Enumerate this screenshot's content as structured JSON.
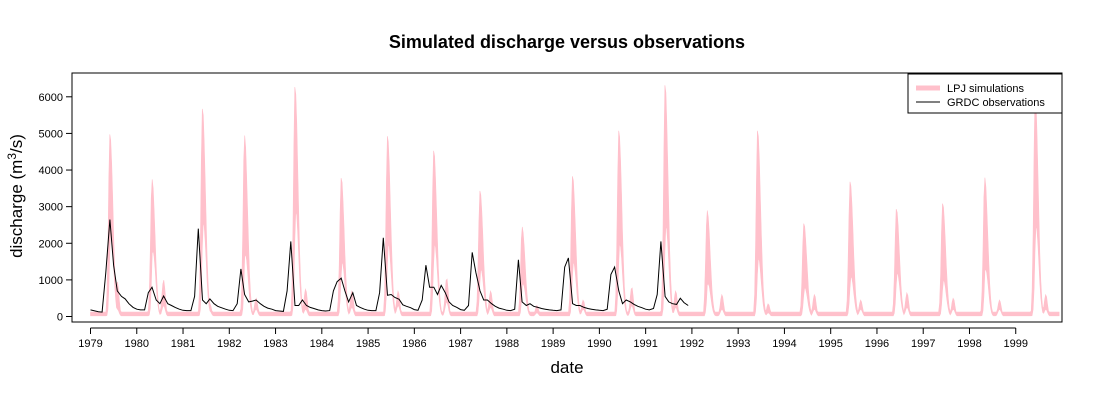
{
  "chart_data": {
    "type": "area",
    "title": "Simulated discharge versus observations",
    "xlabel": "date",
    "ylabel_main": "discharge (m",
    "ylabel_sup": "3",
    "ylabel_tail": "/s)",
    "xlim": [
      1978.6,
      2000.0
    ],
    "ylim": [
      -150,
      6650
    ],
    "xticks": [
      1979,
      1980,
      1981,
      1982,
      1983,
      1984,
      1985,
      1986,
      1987,
      1988,
      1989,
      1990,
      1991,
      1992,
      1993,
      1994,
      1995,
      1996,
      1997,
      1998,
      1999
    ],
    "xtick_labels": [
      "1979",
      "1980",
      "1981",
      "1982",
      "1983",
      "1984",
      "1985",
      "1986",
      "1987",
      "1988",
      "1989",
      "1990",
      "1991",
      "1992",
      "1993",
      "1994",
      "1995",
      "1996",
      "1997",
      "1998",
      "1999"
    ],
    "yticks": [
      0,
      1000,
      2000,
      3000,
      4000,
      5000,
      6000
    ],
    "ytick_labels": [
      "0",
      "1000",
      "2000",
      "3000",
      "4000",
      "5000",
      "6000"
    ],
    "legend": {
      "position": "top-right",
      "entries": [
        {
          "label": "LPJ simulations",
          "color": "#FFC0CB",
          "style": "band"
        },
        {
          "label": "GRDC observations",
          "color": "#000000",
          "style": "line"
        }
      ]
    },
    "series": [
      {
        "name": "LPJ simulations",
        "color": "#FFC0CB",
        "kind": "band",
        "peaks": [
          {
            "t": 1979.42,
            "high": 5000,
            "low": 2400
          },
          {
            "t": 1980.33,
            "high": 3750,
            "low": 1800
          },
          {
            "t": 1981.42,
            "high": 5700,
            "low": 2600
          },
          {
            "t": 1982.33,
            "high": 4950,
            "low": 1700
          },
          {
            "t": 1983.42,
            "high": 6300,
            "low": 2900
          },
          {
            "t": 1984.42,
            "high": 3800,
            "low": 1500
          },
          {
            "t": 1985.42,
            "high": 4950,
            "low": 2000
          },
          {
            "t": 1986.42,
            "high": 4550,
            "low": 2000
          },
          {
            "t": 1987.42,
            "high": 3450,
            "low": 1300
          },
          {
            "t": 1988.33,
            "high": 2450,
            "low": 900
          },
          {
            "t": 1989.42,
            "high": 3850,
            "low": 1500
          },
          {
            "t": 1990.42,
            "high": 5100,
            "low": 2000
          },
          {
            "t": 1991.42,
            "high": 6350,
            "low": 2500
          },
          {
            "t": 1992.33,
            "high": 2900,
            "low": 900
          },
          {
            "t": 1993.42,
            "high": 5100,
            "low": 1600
          },
          {
            "t": 1994.42,
            "high": 2550,
            "low": 800
          },
          {
            "t": 1995.42,
            "high": 3700,
            "low": 1100
          },
          {
            "t": 1996.42,
            "high": 2950,
            "low": 1200
          },
          {
            "t": 1997.42,
            "high": 3100,
            "low": 1000
          },
          {
            "t": 1998.33,
            "high": 3800,
            "low": 1300
          },
          {
            "t": 1999.42,
            "high": 6100,
            "low": 2500
          }
        ],
        "secondary": [
          {
            "t": 1979.58,
            "high": 950,
            "low": 200
          },
          {
            "t": 1980.58,
            "high": 1000,
            "low": 300
          },
          {
            "t": 1981.58,
            "high": 350,
            "low": 150
          },
          {
            "t": 1982.58,
            "high": 500,
            "low": 200
          },
          {
            "t": 1983.65,
            "high": 750,
            "low": 200
          },
          {
            "t": 1984.65,
            "high": 700,
            "low": 250
          },
          {
            "t": 1985.65,
            "high": 700,
            "low": 300
          },
          {
            "t": 1986.7,
            "high": 1050,
            "low": 400
          },
          {
            "t": 1987.65,
            "high": 700,
            "low": 250
          },
          {
            "t": 1988.65,
            "high": 300,
            "low": 100
          },
          {
            "t": 1989.65,
            "high": 450,
            "low": 200
          },
          {
            "t": 1990.7,
            "high": 800,
            "low": 300
          },
          {
            "t": 1991.65,
            "high": 700,
            "low": 250
          },
          {
            "t": 1992.65,
            "high": 600,
            "low": 200
          },
          {
            "t": 1993.65,
            "high": 350,
            "low": 100
          },
          {
            "t": 1994.65,
            "high": 600,
            "low": 200
          },
          {
            "t": 1995.65,
            "high": 450,
            "low": 200
          },
          {
            "t": 1996.65,
            "high": 650,
            "low": 250
          },
          {
            "t": 1997.65,
            "high": 500,
            "low": 200
          },
          {
            "t": 1998.65,
            "high": 450,
            "low": 200
          },
          {
            "t": 1999.65,
            "high": 600,
            "low": 200
          }
        ],
        "base_high": 120,
        "base_low": 20
      },
      {
        "name": "GRDC observations",
        "color": "#000000",
        "kind": "line",
        "x": [
          1979.0,
          1979.17,
          1979.25,
          1979.33,
          1979.42,
          1979.5,
          1979.58,
          1979.67,
          1979.75,
          1979.83,
          1979.92,
          1980.0,
          1980.08,
          1980.17,
          1980.25,
          1980.33,
          1980.42,
          1980.5,
          1980.58,
          1980.67,
          1980.75,
          1980.83,
          1980.92,
          1981.0,
          1981.08,
          1981.17,
          1981.25,
          1981.33,
          1981.42,
          1981.5,
          1981.58,
          1981.67,
          1981.75,
          1981.83,
          1981.92,
          1982.0,
          1982.08,
          1982.17,
          1982.25,
          1982.33,
          1982.42,
          1982.5,
          1982.58,
          1982.67,
          1982.75,
          1982.83,
          1982.92,
          1983.0,
          1983.08,
          1983.17,
          1983.25,
          1983.33,
          1983.42,
          1983.5,
          1983.58,
          1983.67,
          1983.75,
          1983.83,
          1983.92,
          1984.0,
          1984.08,
          1984.17,
          1984.25,
          1984.33,
          1984.42,
          1984.5,
          1984.58,
          1984.67,
          1984.75,
          1984.83,
          1984.92,
          1985.0,
          1985.08,
          1985.17,
          1985.25,
          1985.33,
          1985.42,
          1985.5,
          1985.58,
          1985.67,
          1985.75,
          1985.83,
          1985.92,
          1986.0,
          1986.08,
          1986.17,
          1986.25,
          1986.33,
          1986.42,
          1986.5,
          1986.58,
          1986.67,
          1986.75,
          1986.83,
          1986.92,
          1987.0,
          1987.08,
          1987.17,
          1987.25,
          1987.33,
          1987.42,
          1987.5,
          1987.58,
          1987.67,
          1987.75,
          1987.83,
          1987.92,
          1988.0,
          1988.08,
          1988.17,
          1988.25,
          1988.33,
          1988.42,
          1988.5,
          1988.58,
          1988.67,
          1988.75,
          1988.83,
          1988.92,
          1989.0,
          1989.08,
          1989.17,
          1989.25,
          1989.33,
          1989.42,
          1989.5,
          1989.58,
          1989.67,
          1989.75,
          1989.83,
          1989.92,
          1990.0,
          1990.08,
          1990.17,
          1990.25,
          1990.33,
          1990.42,
          1990.5,
          1990.58,
          1990.67,
          1990.75,
          1990.83,
          1990.92,
          1991.0,
          1991.08,
          1991.17,
          1991.25,
          1991.33,
          1991.42,
          1991.5,
          1991.58,
          1991.67,
          1991.75,
          1991.83,
          1991.92
        ],
        "y": [
          180,
          130,
          120,
          1200,
          2650,
          1400,
          700,
          550,
          480,
          350,
          250,
          200,
          180,
          180,
          650,
          800,
          450,
          350,
          560,
          350,
          300,
          250,
          200,
          170,
          160,
          160,
          550,
          2400,
          450,
          350,
          480,
          350,
          280,
          240,
          200,
          170,
          160,
          350,
          1300,
          600,
          400,
          420,
          450,
          350,
          280,
          230,
          200,
          160,
          150,
          140,
          700,
          2050,
          300,
          300,
          450,
          300,
          250,
          220,
          180,
          160,
          150,
          160,
          700,
          950,
          1050,
          700,
          400,
          650,
          300,
          250,
          200,
          170,
          160,
          160,
          650,
          2150,
          580,
          600,
          520,
          470,
          320,
          280,
          240,
          190,
          170,
          450,
          1400,
          800,
          800,
          600,
          850,
          650,
          400,
          300,
          250,
          190,
          170,
          300,
          1750,
          1200,
          700,
          450,
          450,
          350,
          280,
          230,
          200,
          170,
          160,
          200,
          1550,
          400,
          300,
          350,
          280,
          250,
          220,
          200,
          180,
          170,
          160,
          180,
          1350,
          1600,
          350,
          300,
          300,
          250,
          220,
          200,
          180,
          170,
          160,
          200,
          1150,
          1350,
          700,
          350,
          450,
          400,
          330,
          280,
          240,
          200,
          180,
          220,
          600,
          2050,
          550,
          400,
          350,
          330,
          500,
          380,
          300
        ]
      }
    ]
  }
}
